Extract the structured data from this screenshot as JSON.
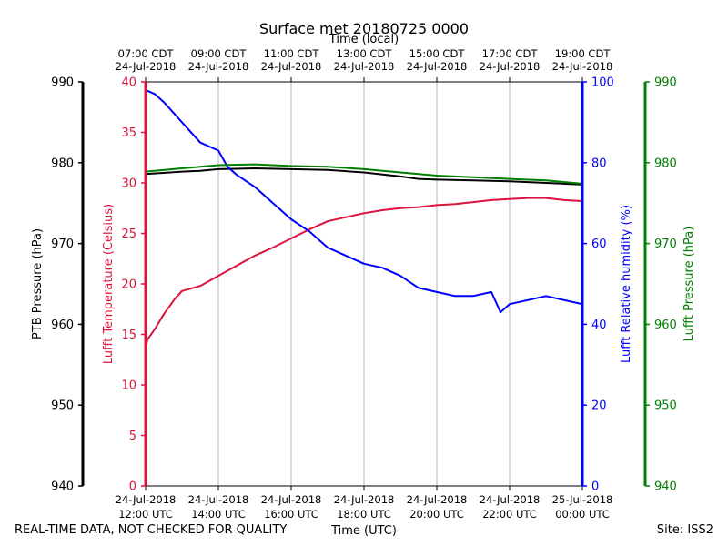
{
  "chart_data": {
    "type": "line",
    "title": "Surface met 20180725 0000",
    "top_axis_label": "Time (local)",
    "xlabel": "Time (UTC)",
    "x_hours_utc": [
      12,
      14,
      16,
      18,
      20,
      22,
      24
    ],
    "x_range_hours_utc": [
      12,
      24
    ],
    "x_ticks_bottom": [
      {
        "hour": 12,
        "date": "24-Jul-2018",
        "time": "12:00 UTC"
      },
      {
        "hour": 14,
        "date": "24-Jul-2018",
        "time": "14:00 UTC"
      },
      {
        "hour": 16,
        "date": "24-Jul-2018",
        "time": "16:00 UTC"
      },
      {
        "hour": 18,
        "date": "24-Jul-2018",
        "time": "18:00 UTC"
      },
      {
        "hour": 20,
        "date": "24-Jul-2018",
        "time": "20:00 UTC"
      },
      {
        "hour": 22,
        "date": "24-Jul-2018",
        "time": "22:00 UTC"
      },
      {
        "hour": 24,
        "date": "25-Jul-2018",
        "time": "00:00 UTC"
      }
    ],
    "x_ticks_top": [
      {
        "hour": 12,
        "time": "07:00 CDT",
        "date": "24-Jul-2018"
      },
      {
        "hour": 14,
        "time": "09:00 CDT",
        "date": "24-Jul-2018"
      },
      {
        "hour": 16,
        "time": "11:00 CDT",
        "date": "24-Jul-2018"
      },
      {
        "hour": 18,
        "time": "13:00 CDT",
        "date": "24-Jul-2018"
      },
      {
        "hour": 20,
        "time": "15:00 CDT",
        "date": "24-Jul-2018"
      },
      {
        "hour": 22,
        "time": "17:00 CDT",
        "date": "24-Jul-2018"
      },
      {
        "hour": 24,
        "time": "19:00 CDT",
        "date": "24-Jul-2018"
      }
    ],
    "axes": [
      {
        "id": "ptb",
        "label": "PTB Pressure (hPa)",
        "color": "#000000",
        "range": [
          940,
          990
        ],
        "ticks": [
          940,
          950,
          960,
          970,
          980,
          990
        ]
      },
      {
        "id": "temp",
        "label": "Lufft Temperature (Celsius)",
        "color": "#dc143c",
        "range": [
          0,
          40
        ],
        "ticks": [
          0,
          5,
          10,
          15,
          20,
          25,
          30,
          35,
          40
        ]
      },
      {
        "id": "rh",
        "label": "Lufft Relative humidity (%)",
        "color": "#0000ff",
        "range": [
          0,
          100
        ],
        "ticks": [
          0,
          20,
          40,
          60,
          80,
          100
        ]
      },
      {
        "id": "lp",
        "label": "Lufft Pressure (hPa)",
        "color": "#008000",
        "range": [
          940,
          990
        ],
        "ticks": [
          940,
          950,
          960,
          970,
          980,
          990
        ]
      }
    ],
    "series": [
      {
        "name": "PTB Pressure",
        "axis": "ptb",
        "color": "#000000",
        "x": [
          12.0,
          13.0,
          13.5,
          14.0,
          15.0,
          16.0,
          17.0,
          18.0,
          19.0,
          19.5,
          20.0,
          21.0,
          22.0,
          23.0,
          24.0
        ],
        "y": [
          978.6,
          978.9,
          979.0,
          979.2,
          979.3,
          979.2,
          979.1,
          978.8,
          978.3,
          978.0,
          977.9,
          977.8,
          977.7,
          977.5,
          977.3
        ]
      },
      {
        "name": "Lufft Temperature",
        "axis": "temp",
        "color": "#dc143c",
        "x": [
          12.0,
          12.05,
          12.25,
          12.5,
          12.8,
          13.0,
          13.5,
          14.0,
          14.5,
          15.0,
          15.5,
          16.0,
          16.5,
          17.0,
          17.5,
          18.0,
          18.5,
          19.0,
          19.5,
          20.0,
          20.5,
          21.0,
          21.5,
          22.0,
          22.5,
          23.0,
          23.5,
          24.0
        ],
        "y": [
          13.5,
          14.5,
          15.5,
          17.0,
          18.5,
          19.3,
          19.8,
          20.8,
          21.8,
          22.8,
          23.6,
          24.5,
          25.4,
          26.2,
          26.6,
          27.0,
          27.3,
          27.5,
          27.6,
          27.8,
          27.9,
          28.1,
          28.3,
          28.4,
          28.5,
          28.5,
          28.3,
          28.2
        ]
      },
      {
        "name": "Lufft Relative humidity",
        "axis": "rh",
        "color": "#0000ff",
        "x": [
          12.0,
          12.25,
          12.5,
          13.0,
          13.5,
          14.0,
          14.25,
          14.5,
          15.0,
          15.5,
          16.0,
          16.5,
          17.0,
          17.5,
          18.0,
          18.5,
          19.0,
          19.5,
          20.0,
          20.5,
          21.0,
          21.5,
          21.75,
          22.0,
          22.5,
          23.0,
          23.5,
          24.0
        ],
        "y": [
          98.0,
          97.0,
          95.0,
          90.0,
          85.0,
          83.0,
          79.0,
          77.0,
          74.0,
          70.0,
          66.0,
          63.0,
          59.0,
          57.0,
          55.0,
          54.0,
          52.0,
          49.0,
          48.0,
          47.0,
          47.0,
          48.0,
          43.0,
          45.0,
          46.0,
          47.0,
          46.0,
          45.0
        ]
      },
      {
        "name": "Lufft Pressure",
        "axis": "lp",
        "color": "#008000",
        "x": [
          12.0,
          13.0,
          14.0,
          15.0,
          16.0,
          17.0,
          18.0,
          19.0,
          20.0,
          21.0,
          22.0,
          23.0,
          24.0
        ],
        "y": [
          978.9,
          979.3,
          979.7,
          979.8,
          979.6,
          979.5,
          979.2,
          978.8,
          978.4,
          978.2,
          978.0,
          977.8,
          977.4
        ]
      }
    ],
    "grid": "vertical"
  },
  "footer": {
    "disclaimer": "REAL-TIME DATA, NOT CHECKED FOR QUALITY",
    "site": "Site: ISS2"
  }
}
